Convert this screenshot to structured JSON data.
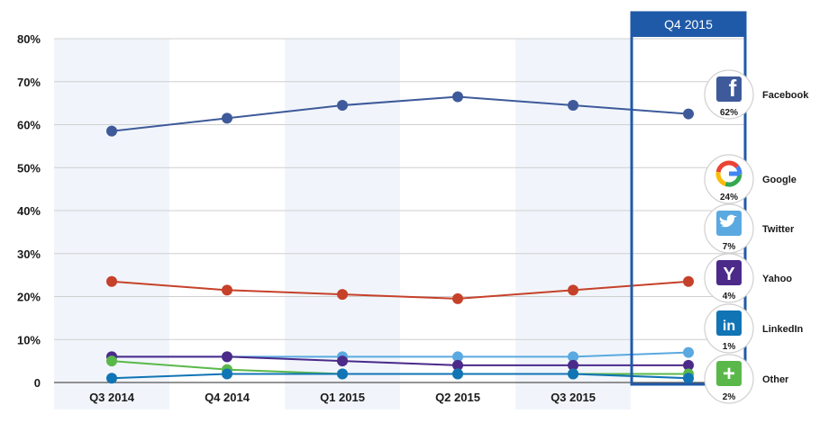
{
  "chart_data": {
    "type": "line",
    "categories": [
      "Q3 2014",
      "Q4 2014",
      "Q1 2015",
      "Q2 2015",
      "Q3 2015",
      "Q4 2015"
    ],
    "y_ticks": [
      "0",
      "10%",
      "20%",
      "30%",
      "40%",
      "50%",
      "60%",
      "70%",
      "80%"
    ],
    "ylim": [
      0,
      80
    ],
    "highlight_label": "Q4 2015",
    "series": [
      {
        "key": "facebook",
        "name": "Facebook",
        "pct_label": "62%",
        "color": "#3e5a9a",
        "icon": "facebook-icon",
        "values": [
          58.5,
          61.5,
          64.5,
          66.5,
          64.5,
          62.5
        ]
      },
      {
        "key": "google",
        "name": "Google",
        "pct_label": "24%",
        "color": "#c6412a",
        "icon": "google-icon",
        "values": [
          23.5,
          21.5,
          20.5,
          19.5,
          21.5,
          23.5
        ]
      },
      {
        "key": "twitter",
        "name": "Twitter",
        "pct_label": "7%",
        "color": "#5aa9e0",
        "icon": "twitter-icon",
        "values": [
          6,
          6,
          6,
          6,
          6,
          7
        ]
      },
      {
        "key": "yahoo",
        "name": "Yahoo",
        "pct_label": "4%",
        "color": "#4b2a8a",
        "icon": "yahoo-icon",
        "values": [
          6,
          6,
          5,
          4,
          4,
          4
        ]
      },
      {
        "key": "other",
        "name": "Other",
        "pct_label": "2%",
        "color": "#5ab84a",
        "icon": "other-icon",
        "values": [
          5,
          3,
          2,
          2,
          2,
          2
        ]
      },
      {
        "key": "linkedin",
        "name": "LinkedIn",
        "pct_label": "1%",
        "color": "#1174b5",
        "icon": "linkedin-icon",
        "values": [
          1,
          2,
          2,
          2,
          2,
          1
        ]
      }
    ],
    "legend_order": [
      "facebook",
      "google",
      "twitter",
      "yahoo",
      "linkedin",
      "other"
    ],
    "legend_position": "right",
    "grid": true
  }
}
